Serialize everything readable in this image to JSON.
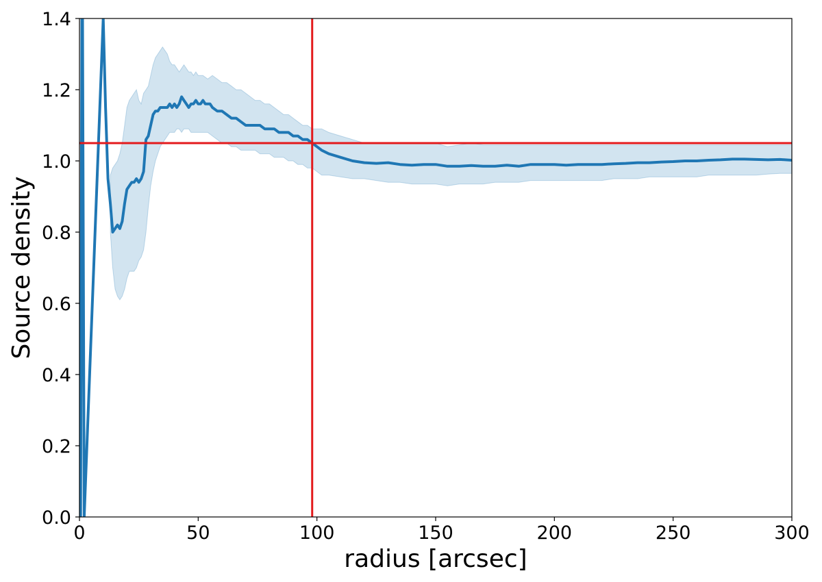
{
  "chart_data": {
    "type": "line",
    "title": "",
    "xlabel": "radius [arcsec]",
    "ylabel": "Source density",
    "xlim": [
      0,
      300
    ],
    "ylim": [
      0,
      1.4
    ],
    "xticks": [
      0,
      50,
      100,
      150,
      200,
      250,
      300
    ],
    "xtick_labels": [
      "0",
      "50",
      "100",
      "150",
      "200",
      "250",
      "300"
    ],
    "yticks": [
      0.0,
      0.2,
      0.4,
      0.6,
      0.8,
      1.0,
      1.2,
      1.4
    ],
    "ytick_labels": [
      "0.0",
      "0.2",
      "0.4",
      "0.6",
      "0.8",
      "1.0",
      "1.2",
      "1.4"
    ],
    "grid": false,
    "series": [
      {
        "color": "#1f77b4",
        "x": [
          0.5,
          1.0,
          1.3,
          2.0,
          10,
          11,
          12,
          13,
          14,
          15,
          16,
          17,
          18,
          19,
          20,
          21,
          22,
          23,
          24,
          25,
          26,
          27,
          28,
          29,
          30,
          31,
          32,
          33,
          34,
          35,
          36,
          37,
          38,
          39,
          40,
          41,
          42,
          43,
          44,
          45,
          46,
          47,
          48,
          49,
          50,
          51,
          52,
          53,
          54,
          55,
          56,
          58,
          60,
          62,
          64,
          66,
          68,
          70,
          72,
          74,
          76,
          78,
          80,
          82,
          84,
          86,
          88,
          90,
          92,
          94,
          96,
          98,
          100,
          102,
          105,
          110,
          115,
          120,
          125,
          130,
          135,
          140,
          145,
          150,
          155,
          160,
          165,
          170,
          175,
          180,
          185,
          190,
          195,
          200,
          205,
          210,
          215,
          220,
          225,
          230,
          235,
          240,
          245,
          250,
          255,
          260,
          265,
          270,
          275,
          280,
          285,
          290,
          295,
          300
        ],
        "y": [
          0.0,
          1.4,
          1.4,
          0.0,
          1.4,
          1.15,
          0.95,
          0.88,
          0.8,
          0.81,
          0.82,
          0.81,
          0.83,
          0.88,
          0.92,
          0.93,
          0.94,
          0.94,
          0.95,
          0.94,
          0.95,
          0.97,
          1.06,
          1.07,
          1.1,
          1.13,
          1.14,
          1.14,
          1.15,
          1.15,
          1.15,
          1.15,
          1.16,
          1.15,
          1.16,
          1.15,
          1.16,
          1.18,
          1.17,
          1.16,
          1.15,
          1.16,
          1.16,
          1.17,
          1.16,
          1.16,
          1.17,
          1.16,
          1.16,
          1.16,
          1.15,
          1.14,
          1.14,
          1.13,
          1.12,
          1.12,
          1.11,
          1.1,
          1.1,
          1.1,
          1.1,
          1.09,
          1.09,
          1.09,
          1.08,
          1.08,
          1.08,
          1.07,
          1.07,
          1.06,
          1.06,
          1.05,
          1.04,
          1.03,
          1.02,
          1.01,
          1.0,
          0.995,
          0.993,
          0.995,
          0.99,
          0.988,
          0.99,
          0.99,
          0.985,
          0.985,
          0.987,
          0.985,
          0.985,
          0.988,
          0.985,
          0.99,
          0.99,
          0.99,
          0.988,
          0.99,
          0.99,
          0.99,
          0.992,
          0.993,
          0.995,
          0.995,
          0.997,
          0.998,
          1.0,
          1.0,
          1.002,
          1.003,
          1.005,
          1.005,
          1.004,
          1.003,
          1.004,
          1.002
        ]
      }
    ],
    "confidence_band": {
      "color": "#1f77b4",
      "opacity": 0.2,
      "x": [
        13,
        14,
        15,
        16,
        17,
        18,
        19,
        20,
        21,
        22,
        23,
        24,
        25,
        26,
        27,
        28,
        29,
        30,
        31,
        32,
        33,
        34,
        35,
        36,
        37,
        38,
        39,
        40,
        41,
        42,
        43,
        44,
        45,
        46,
        47,
        48,
        49,
        50,
        52,
        54,
        56,
        58,
        60,
        62,
        64,
        66,
        68,
        70,
        72,
        74,
        76,
        78,
        80,
        82,
        84,
        86,
        88,
        90,
        92,
        94,
        96,
        98,
        100,
        102,
        105,
        110,
        115,
        120,
        125,
        130,
        135,
        140,
        145,
        150,
        155,
        160,
        165,
        170,
        175,
        180,
        185,
        190,
        195,
        200,
        205,
        210,
        215,
        220,
        225,
        230,
        235,
        240,
        245,
        250,
        255,
        260,
        265,
        270,
        275,
        280,
        285,
        290,
        295,
        300
      ],
      "upper": [
        0.96,
        0.98,
        0.99,
        1.0,
        1.02,
        1.05,
        1.1,
        1.15,
        1.17,
        1.18,
        1.19,
        1.2,
        1.17,
        1.16,
        1.19,
        1.2,
        1.21,
        1.24,
        1.27,
        1.29,
        1.3,
        1.31,
        1.32,
        1.31,
        1.3,
        1.28,
        1.27,
        1.27,
        1.26,
        1.25,
        1.26,
        1.27,
        1.26,
        1.25,
        1.25,
        1.24,
        1.25,
        1.24,
        1.24,
        1.23,
        1.24,
        1.23,
        1.22,
        1.22,
        1.21,
        1.2,
        1.2,
        1.19,
        1.18,
        1.17,
        1.17,
        1.16,
        1.16,
        1.15,
        1.14,
        1.13,
        1.13,
        1.12,
        1.11,
        1.1,
        1.1,
        1.09,
        1.09,
        1.09,
        1.08,
        1.07,
        1.06,
        1.05,
        1.05,
        1.05,
        1.05,
        1.05,
        1.05,
        1.05,
        1.04,
        1.045,
        1.05,
        1.045,
        1.045,
        1.045,
        1.045,
        1.045,
        1.045,
        1.045,
        1.045,
        1.045,
        1.045,
        1.045,
        1.045,
        1.045,
        1.045,
        1.045,
        1.045,
        1.045,
        1.045,
        1.045,
        1.045,
        1.045,
        1.045,
        1.045,
        1.045,
        1.045,
        1.045,
        1.045
      ],
      "lower": [
        0.8,
        0.7,
        0.64,
        0.62,
        0.61,
        0.62,
        0.64,
        0.67,
        0.69,
        0.69,
        0.69,
        0.7,
        0.72,
        0.73,
        0.75,
        0.8,
        0.87,
        0.93,
        0.97,
        1.0,
        1.02,
        1.04,
        1.05,
        1.06,
        1.07,
        1.08,
        1.08,
        1.08,
        1.09,
        1.09,
        1.08,
        1.09,
        1.09,
        1.09,
        1.08,
        1.08,
        1.08,
        1.08,
        1.08,
        1.08,
        1.07,
        1.06,
        1.05,
        1.05,
        1.04,
        1.04,
        1.03,
        1.03,
        1.03,
        1.03,
        1.02,
        1.02,
        1.02,
        1.01,
        1.01,
        1.01,
        1.0,
        1.0,
        0.99,
        0.99,
        0.98,
        0.98,
        0.97,
        0.96,
        0.96,
        0.955,
        0.95,
        0.95,
        0.945,
        0.94,
        0.94,
        0.935,
        0.935,
        0.935,
        0.93,
        0.935,
        0.935,
        0.935,
        0.94,
        0.94,
        0.94,
        0.945,
        0.945,
        0.945,
        0.945,
        0.945,
        0.945,
        0.945,
        0.95,
        0.95,
        0.95,
        0.955,
        0.955,
        0.955,
        0.955,
        0.955,
        0.96,
        0.96,
        0.96,
        0.96,
        0.96,
        0.963,
        0.965,
        0.965
      ]
    },
    "reference_lines": [
      {
        "orientation": "horizontal",
        "value": 1.05,
        "color": "#e31a1c"
      },
      {
        "orientation": "vertical",
        "value": 98,
        "color": "#e31a1c"
      }
    ]
  }
}
